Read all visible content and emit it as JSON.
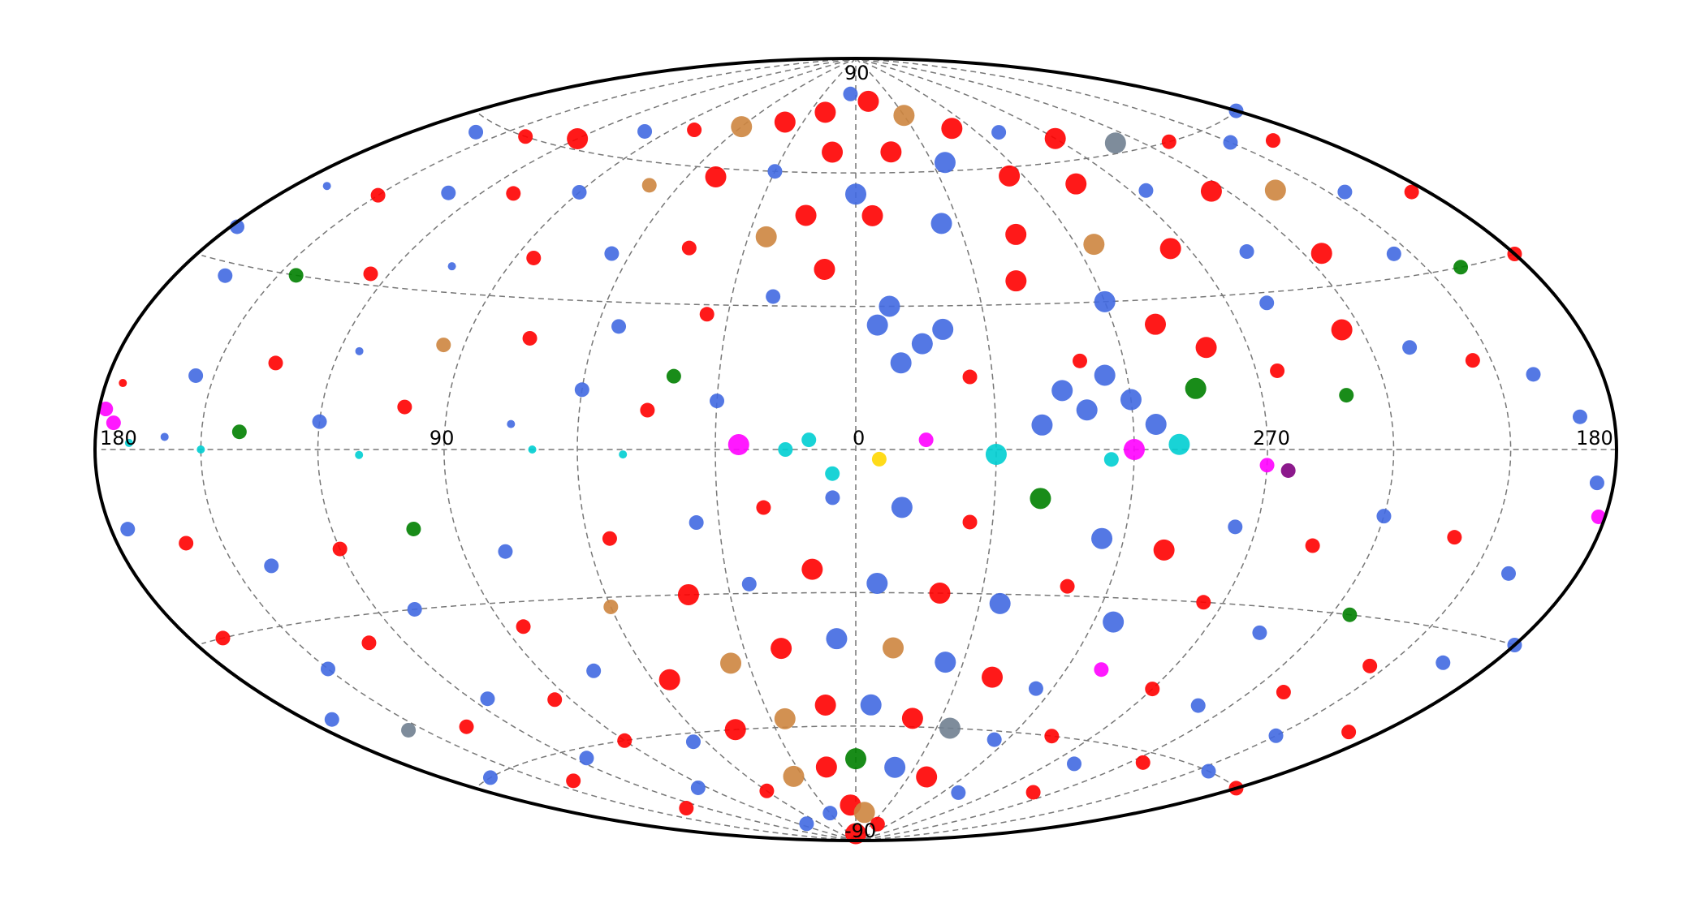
{
  "chart_data": {
    "type": "scatter",
    "projection": "hammer",
    "longitude_direction": "increasing-left",
    "grid": true,
    "grid_step_deg": 30,
    "legend": "none",
    "x_tick_labels": [
      {
        "lon": 180,
        "label": "180",
        "side": "left"
      },
      {
        "lon": 90,
        "label": "90"
      },
      {
        "lon": 0,
        "label": "0"
      },
      {
        "lon": 270,
        "label": "270"
      },
      {
        "lon": 180,
        "label": "180",
        "side": "right"
      }
    ],
    "y_tick_labels": [
      {
        "lat": 90,
        "label": "90"
      },
      {
        "lat": -90,
        "label": "-90"
      }
    ],
    "colors": [
      "#4169e1",
      "#ff0000",
      "#cd853f",
      "#708090",
      "#008000",
      "#00ced1",
      "#ff00ff",
      "#800080",
      "#ffd700"
    ],
    "points": [
      [
        5,
        80,
        0,
        2
      ],
      [
        20,
        75,
        1,
        3
      ],
      [
        40,
        72,
        1,
        3
      ],
      [
        60,
        70,
        2,
        3
      ],
      [
        80,
        68,
        1,
        2
      ],
      [
        100,
        66,
        0,
        2
      ],
      [
        120,
        62,
        1,
        3
      ],
      [
        140,
        60,
        1,
        2
      ],
      [
        160,
        58,
        0,
        2
      ],
      [
        350,
        78,
        1,
        3
      ],
      [
        330,
        74,
        2,
        3
      ],
      [
        310,
        70,
        1,
        3
      ],
      [
        290,
        68,
        0,
        2
      ],
      [
        270,
        65,
        1,
        3
      ],
      [
        250,
        62,
        3,
        3
      ],
      [
        230,
        60,
        1,
        2
      ],
      [
        210,
        57,
        0,
        2
      ],
      [
        195,
        55,
        1,
        2
      ],
      [
        10,
        65,
        1,
        3
      ],
      [
        30,
        60,
        0,
        2
      ],
      [
        50,
        58,
        1,
        3
      ],
      [
        70,
        55,
        2,
        2
      ],
      [
        90,
        52,
        0,
        2
      ],
      [
        110,
        50,
        1,
        2
      ],
      [
        130,
        48,
        0,
        2
      ],
      [
        150,
        45,
        1,
        2
      ],
      [
        170,
        44,
        0,
        1
      ],
      [
        345,
        65,
        1,
        3
      ],
      [
        325,
        62,
        0,
        3
      ],
      [
        305,
        58,
        1,
        3
      ],
      [
        285,
        55,
        1,
        3
      ],
      [
        265,
        52,
        0,
        2
      ],
      [
        245,
        50,
        1,
        3
      ],
      [
        225,
        48,
        2,
        3
      ],
      [
        205,
        45,
        0,
        2
      ],
      [
        185,
        42,
        1,
        2
      ],
      [
        0,
        55,
        0,
        3
      ],
      [
        15,
        50,
        1,
        3
      ],
      [
        25,
        45,
        2,
        3
      ],
      [
        45,
        42,
        1,
        2
      ],
      [
        65,
        40,
        0,
        2
      ],
      [
        85,
        38,
        1,
        2
      ],
      [
        105,
        35,
        0,
        1
      ],
      [
        125,
        32,
        1,
        2
      ],
      [
        145,
        30,
        4,
        2
      ],
      [
        165,
        28,
        0,
        2
      ],
      [
        355,
        50,
        1,
        3
      ],
      [
        335,
        48,
        0,
        3
      ],
      [
        315,
        45,
        1,
        3
      ],
      [
        295,
        42,
        2,
        3
      ],
      [
        275,
        40,
        1,
        3
      ],
      [
        255,
        38,
        0,
        2
      ],
      [
        235,
        36,
        1,
        3
      ],
      [
        215,
        34,
        0,
        2
      ],
      [
        200,
        30,
        4,
        2
      ],
      [
        8,
        38,
        1,
        3
      ],
      [
        20,
        32,
        0,
        2
      ],
      [
        35,
        28,
        1,
        2
      ],
      [
        55,
        25,
        0,
        2
      ],
      [
        75,
        22,
        1,
        2
      ],
      [
        95,
        20,
        2,
        2
      ],
      [
        115,
        18,
        0,
        1
      ],
      [
        135,
        15,
        1,
        2
      ],
      [
        155,
        12,
        0,
        2
      ],
      [
        175,
        10,
        1,
        1
      ],
      [
        352,
        30,
        0,
        3
      ],
      [
        345,
        22,
        0,
        3
      ],
      [
        350,
        18,
        0,
        3
      ],
      [
        340,
        25,
        0,
        3
      ],
      [
        355,
        26,
        0,
        3
      ],
      [
        335,
        15,
        1,
        2
      ],
      [
        320,
        35,
        1,
        3
      ],
      [
        300,
        30,
        0,
        3
      ],
      [
        290,
        25,
        1,
        3
      ],
      [
        315,
        12,
        0,
        3
      ],
      [
        310,
        8,
        0,
        3
      ],
      [
        305,
        15,
        0,
        3
      ],
      [
        300,
        10,
        0,
        3
      ],
      [
        295,
        5,
        0,
        3
      ],
      [
        320,
        5,
        0,
        3
      ],
      [
        310,
        18,
        1,
        2
      ],
      [
        285,
        12,
        4,
        3
      ],
      [
        280,
        20,
        1,
        3
      ],
      [
        260,
        28,
        0,
        2
      ],
      [
        245,
        22,
        1,
        3
      ],
      [
        230,
        18,
        0,
        2
      ],
      [
        215,
        15,
        1,
        2
      ],
      [
        200,
        12,
        0,
        2
      ],
      [
        190,
        5,
        0,
        2
      ],
      [
        250,
        10,
        4,
        2
      ],
      [
        265,
        15,
        1,
        2
      ],
      [
        30,
        10,
        0,
        2
      ],
      [
        45,
        8,
        1,
        2
      ],
      [
        60,
        12,
        0,
        2
      ],
      [
        40,
        15,
        4,
        2
      ],
      [
        75,
        5,
        0,
        1
      ],
      [
        100,
        8,
        1,
        2
      ],
      [
        120,
        5,
        0,
        2
      ],
      [
        140,
        3,
        4,
        2
      ],
      [
        160,
        2,
        0,
        1
      ],
      [
        175,
        4,
        6,
        2
      ],
      [
        10,
        2,
        5,
        2
      ],
      [
        25,
        1,
        6,
        3
      ],
      [
        15,
        0,
        5,
        2
      ],
      [
        345,
        2,
        6,
        2
      ],
      [
        330,
        -1,
        5,
        3
      ],
      [
        300,
        0,
        6,
        3
      ],
      [
        290,
        1,
        5,
        3
      ],
      [
        305,
        -2,
        5,
        2
      ],
      [
        270,
        -3,
        6,
        2
      ],
      [
        265,
        -4,
        7,
        2
      ],
      [
        355,
        -2,
        8,
        2
      ],
      [
        5,
        -5,
        5,
        2
      ],
      [
        50,
        -1,
        5,
        1
      ],
      [
        70,
        0,
        5,
        1
      ],
      [
        110,
        -1,
        5,
        1
      ],
      [
        150,
        0,
        5,
        1
      ],
      [
        170,
        1,
        5,
        1
      ],
      [
        178,
        6,
        6,
        2
      ],
      [
        182,
        -10,
        6,
        2
      ],
      [
        5,
        -10,
        0,
        2
      ],
      [
        20,
        -12,
        1,
        2
      ],
      [
        35,
        -15,
        0,
        2
      ],
      [
        55,
        -18,
        1,
        2
      ],
      [
        80,
        -20,
        0,
        2
      ],
      [
        100,
        -15,
        4,
        2
      ],
      [
        120,
        -18,
        1,
        2
      ],
      [
        140,
        -20,
        0,
        2
      ],
      [
        160,
        -15,
        1,
        2
      ],
      [
        175,
        -12,
        0,
        2
      ],
      [
        350,
        -12,
        0,
        3
      ],
      [
        335,
        -15,
        1,
        2
      ],
      [
        320,
        -10,
        4,
        3
      ],
      [
        305,
        -18,
        0,
        3
      ],
      [
        290,
        -20,
        1,
        3
      ],
      [
        275,
        -15,
        0,
        2
      ],
      [
        255,
        -18,
        1,
        2
      ],
      [
        240,
        -12,
        0,
        2
      ],
      [
        220,
        -15,
        1,
        2
      ],
      [
        200,
        -20,
        0,
        2
      ],
      [
        10,
        -25,
        1,
        3
      ],
      [
        25,
        -28,
        0,
        2
      ],
      [
        40,
        -30,
        1,
        3
      ],
      [
        60,
        -32,
        2,
        2
      ],
      [
        85,
        -35,
        1,
        2
      ],
      [
        110,
        -30,
        0,
        2
      ],
      [
        130,
        -35,
        1,
        2
      ],
      [
        150,
        -38,
        0,
        2
      ],
      [
        170,
        -30,
        1,
        2
      ],
      [
        355,
        -28,
        0,
        3
      ],
      [
        340,
        -30,
        1,
        3
      ],
      [
        325,
        -32,
        0,
        3
      ],
      [
        310,
        -28,
        1,
        2
      ],
      [
        295,
        -35,
        0,
        3
      ],
      [
        275,
        -30,
        1,
        2
      ],
      [
        255,
        -35,
        0,
        2
      ],
      [
        235,
        -30,
        4,
        2
      ],
      [
        215,
        -38,
        1,
        2
      ],
      [
        195,
        -35,
        0,
        2
      ],
      [
        5,
        -40,
        0,
        3
      ],
      [
        20,
        -42,
        1,
        3
      ],
      [
        35,
        -45,
        2,
        3
      ],
      [
        55,
        -48,
        1,
        3
      ],
      [
        75,
        -45,
        0,
        2
      ],
      [
        95,
        -50,
        1,
        2
      ],
      [
        115,
        -48,
        0,
        2
      ],
      [
        135,
        -52,
        1,
        2
      ],
      [
        155,
        -50,
        3,
        2
      ],
      [
        172,
        -45,
        0,
        2
      ],
      [
        350,
        -42,
        2,
        3
      ],
      [
        335,
        -45,
        0,
        3
      ],
      [
        320,
        -48,
        1,
        3
      ],
      [
        305,
        -50,
        0,
        2
      ],
      [
        290,
        -45,
        6,
        2
      ],
      [
        270,
        -48,
        1,
        2
      ],
      [
        250,
        -50,
        0,
        2
      ],
      [
        230,
        -45,
        1,
        2
      ],
      [
        210,
        -52,
        0,
        2
      ],
      [
        190,
        -48,
        1,
        2
      ],
      [
        10,
        -55,
        1,
        3
      ],
      [
        25,
        -58,
        2,
        3
      ],
      [
        45,
        -60,
        1,
        3
      ],
      [
        65,
        -62,
        0,
        2
      ],
      [
        90,
        -60,
        1,
        2
      ],
      [
        115,
        -62,
        0,
        2
      ],
      [
        140,
        -65,
        1,
        2
      ],
      [
        165,
        -60,
        0,
        2
      ],
      [
        355,
        -55,
        0,
        3
      ],
      [
        340,
        -58,
        1,
        3
      ],
      [
        325,
        -60,
        3,
        3
      ],
      [
        305,
        -62,
        0,
        2
      ],
      [
        285,
        -60,
        1,
        2
      ],
      [
        260,
        -65,
        0,
        2
      ],
      [
        235,
        -62,
        1,
        2
      ],
      [
        205,
        -60,
        0,
        2
      ],
      [
        0,
        -68,
        4,
        3
      ],
      [
        15,
        -70,
        1,
        3
      ],
      [
        35,
        -72,
        2,
        3
      ],
      [
        60,
        -75,
        1,
        2
      ],
      [
        95,
        -72,
        0,
        2
      ],
      [
        130,
        -75,
        1,
        2
      ],
      [
        340,
        -70,
        0,
        3
      ],
      [
        320,
        -72,
        1,
        3
      ],
      [
        290,
        -75,
        0,
        2
      ],
      [
        250,
        -72,
        1,
        2
      ],
      [
        5,
        -80,
        1,
        3
      ],
      [
        30,
        -82,
        0,
        2
      ],
      [
        350,
        -82,
        2,
        3
      ],
      [
        320,
        -85,
        1,
        2
      ],
      [
        80,
        -84,
        0,
        2
      ],
      [
        0,
        -88,
        1,
        3
      ],
      [
        180,
        60,
        0,
        2
      ],
      [
        180,
        30,
        1,
        2
      ],
      [
        180,
        -30,
        0,
        2
      ],
      [
        180,
        -60,
        1,
        2
      ],
      [
        178,
        35,
        0,
        2
      ],
      [
        185,
        -5,
        0,
        2
      ]
    ]
  }
}
